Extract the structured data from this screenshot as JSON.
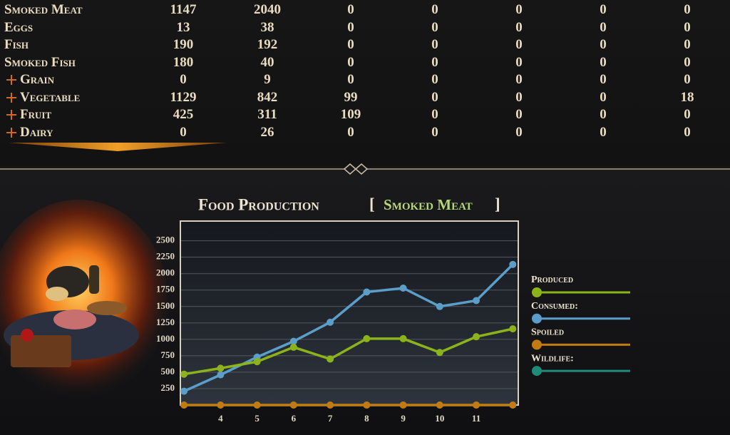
{
  "table": {
    "rows": [
      {
        "name": "Smoked Meat",
        "cells": [
          1147,
          2040,
          0,
          0,
          0,
          0,
          0
        ]
      },
      {
        "name": "Eggs",
        "cells": [
          13,
          38,
          0,
          0,
          0,
          0,
          0
        ]
      },
      {
        "name": "Fish",
        "cells": [
          190,
          192,
          0,
          0,
          0,
          0,
          0
        ]
      },
      {
        "name": "Smoked Fish",
        "cells": [
          180,
          40,
          0,
          0,
          0,
          0,
          0
        ]
      },
      {
        "prefix": "+",
        "name": "Grain",
        "cells": [
          0,
          9,
          0,
          0,
          0,
          0,
          0
        ]
      },
      {
        "prefix": "+",
        "name": "Vegetable",
        "cells": [
          1129,
          842,
          99,
          0,
          0,
          0,
          18
        ]
      },
      {
        "prefix": "+",
        "name": "Fruit",
        "cells": [
          425,
          311,
          109,
          0,
          0,
          0,
          0
        ]
      },
      {
        "prefix": "+",
        "name": "Dairy",
        "cells": [
          0,
          26,
          0,
          0,
          0,
          0,
          0
        ]
      }
    ]
  },
  "chart_data": {
    "type": "line",
    "title": "Food Production",
    "selection": "Smoked Meat",
    "selection_brackets": [
      "[",
      "]"
    ],
    "x": [
      3,
      4,
      5,
      6,
      7,
      8,
      9,
      10,
      11,
      12
    ],
    "xlim": [
      2.9,
      12.15
    ],
    "xticks": [
      4,
      5,
      6,
      7,
      8,
      9,
      10,
      11
    ],
    "ylim": [
      0,
      2800
    ],
    "yticks": [
      250,
      500,
      750,
      1000,
      1250,
      1500,
      1750,
      2000,
      2250,
      2500
    ],
    "grid": true,
    "legend": "right",
    "series": [
      {
        "name": "Produced",
        "color": "#8cb31a",
        "values": [
          470,
          560,
          660,
          880,
          700,
          1010,
          1010,
          800,
          1040,
          1160
        ]
      },
      {
        "name": "Consumed:",
        "color": "#5b9ec9",
        "values": [
          210,
          460,
          730,
          970,
          1260,
          1720,
          1780,
          1500,
          1590,
          2140
        ]
      },
      {
        "name": "Spoiled",
        "color": "#c47a12",
        "values": [
          0,
          0,
          0,
          0,
          0,
          0,
          0,
          0,
          0,
          0
        ]
      },
      {
        "name": "Wildlife:",
        "color": "#1f8c78",
        "values": [
          0,
          0,
          0,
          0,
          0,
          0,
          0,
          0,
          0,
          0
        ]
      }
    ]
  }
}
